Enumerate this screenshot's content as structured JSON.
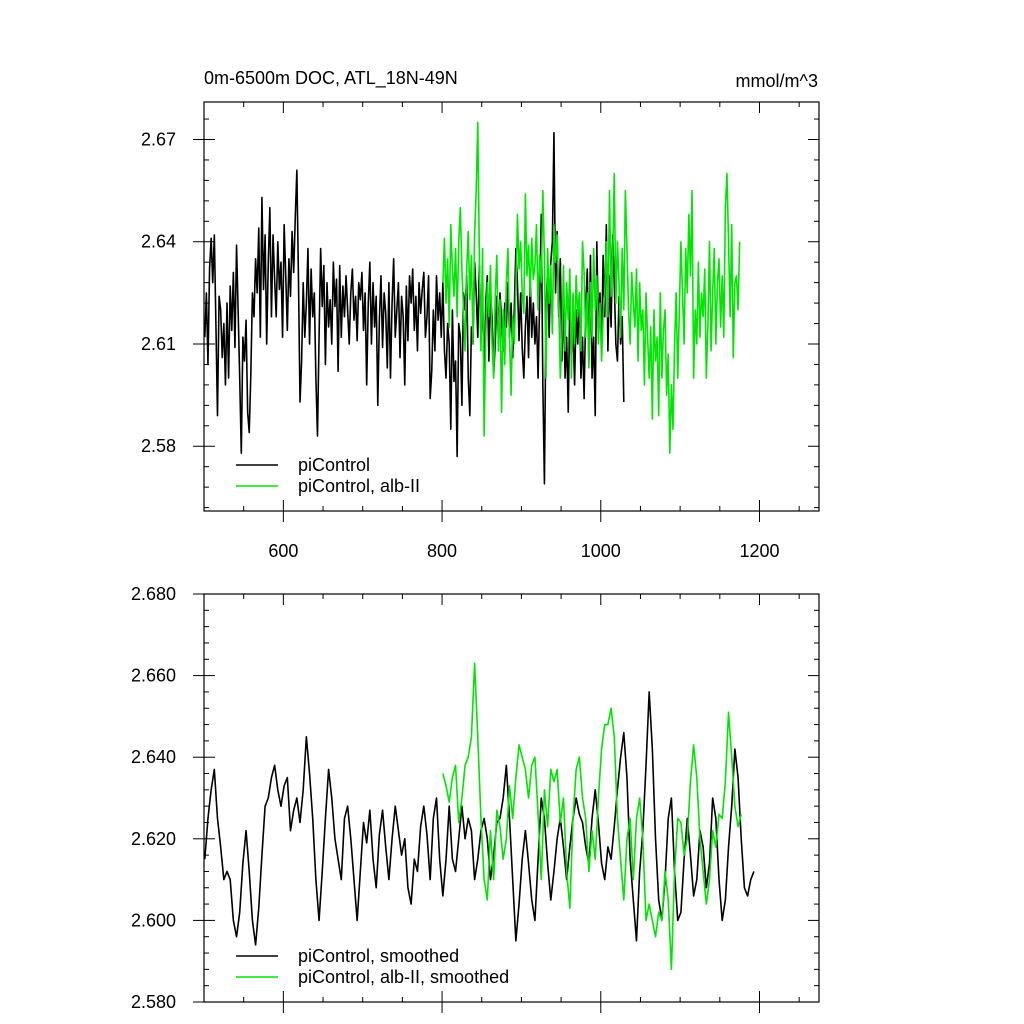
{
  "chart_data": [
    {
      "type": "line",
      "title": "0m-6500m DOC, ATL_18N-49N",
      "units": "mmol/m^3",
      "xlim": [
        500,
        1275
      ],
      "ylim": [
        2.561,
        2.681
      ],
      "xticks": [
        600,
        800,
        1000,
        1200
      ],
      "yticks": [
        2.58,
        2.61,
        2.64,
        2.67
      ],
      "ytick_labels": [
        "2.58",
        "2.61",
        "2.64",
        "2.67"
      ],
      "legend_position": "bottom-left",
      "series": [
        {
          "name": "piControl",
          "color": "#000000",
          "x_start": 501,
          "x_step": 2,
          "values": [
            2.612,
            2.625,
            2.604,
            2.632,
            2.641,
            2.628,
            2.642,
            2.616,
            2.589,
            2.624,
            2.62,
            2.606,
            2.616,
            2.598,
            2.622,
            2.6,
            2.627,
            2.614,
            2.631,
            2.609,
            2.639,
            2.62,
            2.6,
            2.578,
            2.612,
            2.605,
            2.617,
            2.59,
            2.584,
            2.601,
            2.625,
            2.618,
            2.635,
            2.625,
            2.644,
            2.612,
            2.653,
            2.626,
            2.642,
            2.61,
            2.634,
            2.65,
            2.618,
            2.642,
            2.629,
            2.618,
            2.64,
            2.626,
            2.634,
            2.612,
            2.645,
            2.63,
            2.614,
            2.635,
            2.624,
            2.643,
            2.631,
            2.647,
            2.661,
            2.63,
            2.593,
            2.605,
            2.628,
            2.612,
            2.622,
            2.638,
            2.61,
            2.632,
            2.618,
            2.625,
            2.6,
            2.583,
            2.612,
            2.638,
            2.621,
            2.633,
            2.604,
            2.628,
            2.615,
            2.623,
            2.61,
            2.634,
            2.621,
            2.629,
            2.602,
            2.633,
            2.612,
            2.627,
            2.618,
            2.63,
            2.62,
            2.61,
            2.625,
            2.632,
            2.617,
            2.624,
            2.611,
            2.628,
            2.623,
            2.631,
            2.614,
            2.625,
            2.598,
            2.622,
            2.634,
            2.61,
            2.628,
            2.615,
            2.624,
            2.592,
            2.617,
            2.63,
            2.609,
            2.625,
            2.619,
            2.603,
            2.628,
            2.6,
            2.622,
            2.635,
            2.612,
            2.62,
            2.628,
            2.606,
            2.624,
            2.618,
            2.598,
            2.627,
            2.611,
            2.63,
            2.622,
            2.632,
            2.614,
            2.624,
            2.608,
            2.628,
            2.619,
            2.626,
            2.631,
            2.612,
            2.618,
            2.63,
            2.594,
            2.602,
            2.62,
            2.608,
            2.63,
            2.617,
            2.625,
            2.612,
            2.628,
            2.608,
            2.6,
            2.616,
            2.61,
            2.585,
            2.62,
            2.599,
            2.605,
            2.577,
            2.616,
            2.612,
            2.592,
            2.625,
            2.62,
            2.63,
            2.6,
            2.589,
            2.615,
            2.61,
            2.634,
            2.625,
            2.612,
            2.633,
            2.611,
            2.623,
            2.6,
            2.622,
            2.63,
            2.605,
            2.625,
            2.618,
            2.601,
            2.61,
            2.624,
            2.612,
            2.625,
            2.617,
            2.608,
            2.622,
            2.615,
            2.628,
            2.612,
            2.622,
            2.606,
            2.62,
            2.638,
            2.628,
            2.611,
            2.625,
            2.609,
            2.6,
            2.615,
            2.624,
            2.606,
            2.63,
            2.612,
            2.622,
            2.61,
            2.618,
            2.6,
            2.623,
            2.648,
            2.598,
            2.569,
            2.62,
            2.632,
            2.612,
            2.634,
            2.64,
            2.672,
            2.625,
            2.643,
            2.618,
            2.635,
            2.605,
            2.624,
            2.6,
            2.612,
            2.59,
            2.624,
            2.605,
            2.615,
            2.598,
            2.62,
            2.61,
            2.625,
            2.6,
            2.612,
            2.594,
            2.62,
            2.632,
            2.605,
            2.636,
            2.6,
            2.612,
            2.589,
            2.64,
            2.615,
            2.625,
            2.608,
            2.636,
            2.618,
            2.645,
            2.608,
            2.63,
            2.615,
            2.642,
            2.628,
            2.61,
            2.605,
            2.624,
            2.61,
            2.618,
            2.593
          ]
        },
        {
          "name": "piControl, alb-II",
          "color": "#00e600",
          "x_start": 801,
          "x_step": 2,
          "values": [
            2.628,
            2.641,
            2.622,
            2.635,
            2.615,
            2.645,
            2.632,
            2.624,
            2.638,
            2.618,
            2.64,
            2.65,
            2.632,
            2.62,
            2.608,
            2.632,
            2.643,
            2.623,
            2.636,
            2.61,
            2.642,
            2.655,
            2.675,
            2.635,
            2.608,
            2.638,
            2.583,
            2.612,
            2.628,
            2.618,
            2.633,
            2.61,
            2.6,
            2.624,
            2.636,
            2.608,
            2.623,
            2.59,
            2.62,
            2.604,
            2.628,
            2.638,
            2.612,
            2.595,
            2.618,
            2.61,
            2.626,
            2.648,
            2.632,
            2.64,
            2.625,
            2.619,
            2.654,
            2.63,
            2.639,
            2.624,
            2.641,
            2.629,
            2.633,
            2.645,
            2.62,
            2.636,
            2.628,
            2.655,
            2.635,
            2.6,
            2.638,
            2.622,
            2.633,
            2.613,
            2.645,
            2.634,
            2.642,
            2.622,
            2.6,
            2.612,
            2.633,
            2.608,
            2.628,
            2.617,
            2.632,
            2.6,
            2.625,
            2.61,
            2.63,
            2.618,
            2.625,
            2.608,
            2.64,
            2.631,
            2.612,
            2.625,
            2.603,
            2.628,
            2.612,
            2.638,
            2.62,
            2.63,
            2.61,
            2.622,
            2.605,
            2.618,
            2.625,
            2.64,
            2.618,
            2.655,
            2.624,
            2.635,
            2.66,
            2.622,
            2.64,
            2.628,
            2.612,
            2.638,
            2.62,
            2.655,
            2.638,
            2.62,
            2.61,
            2.631,
            2.622,
            2.615,
            2.632,
            2.605,
            2.628,
            2.614,
            2.62,
            2.598,
            2.625,
            2.612,
            2.6,
            2.615,
            2.588,
            2.62,
            2.605,
            2.612,
            2.589,
            2.625,
            2.6,
            2.614,
            2.62,
            2.595,
            2.607,
            2.578,
            2.598,
            2.585,
            2.61,
            2.625,
            2.6,
            2.62,
            2.64,
            2.625,
            2.61,
            2.638,
            2.625,
            2.648,
            2.63,
            2.655,
            2.6,
            2.62,
            2.61,
            2.634,
            2.612,
            2.625,
            2.618,
            2.632,
            2.6,
            2.616,
            2.64,
            2.608,
            2.625,
            2.638,
            2.61,
            2.628,
            2.635,
            2.615,
            2.63,
            2.612,
            2.65,
            2.66,
            2.64,
            2.618,
            2.645,
            2.606,
            2.628,
            2.63,
            2.62,
            2.64
          ]
        }
      ]
    },
    {
      "type": "line",
      "xlim": [
        500,
        1275
      ],
      "ylim": [
        2.58,
        2.68
      ],
      "xticks": [
        600,
        800,
        1000,
        1200
      ],
      "yticks": [
        2.58,
        2.6,
        2.62,
        2.64,
        2.66,
        2.68
      ],
      "ytick_labels": [
        "2.580",
        "2.600",
        "2.620",
        "2.640",
        "2.660",
        "2.680"
      ],
      "legend_position": "bottom-left",
      "series": [
        {
          "name": "piControl, smoothed",
          "color": "#000000",
          "x_start": 501,
          "x_step": 4,
          "values": [
            2.615,
            2.625,
            2.632,
            2.637,
            2.625,
            2.618,
            2.61,
            2.612,
            2.61,
            2.6,
            2.596,
            2.602,
            2.614,
            2.622,
            2.612,
            2.6,
            2.594,
            2.603,
            2.616,
            2.628,
            2.63,
            2.635,
            2.638,
            2.632,
            2.628,
            2.633,
            2.635,
            2.622,
            2.627,
            2.63,
            2.624,
            2.632,
            2.645,
            2.636,
            2.625,
            2.61,
            2.6,
            2.612,
            2.625,
            2.637,
            2.63,
            2.62,
            2.615,
            2.61,
            2.625,
            2.628,
            2.62,
            2.61,
            2.6,
            2.612,
            2.624,
            2.619,
            2.627,
            2.615,
            2.608,
            2.621,
            2.627,
            2.618,
            2.61,
            2.62,
            2.628,
            2.622,
            2.616,
            2.62,
            2.608,
            2.604,
            2.615,
            2.612,
            2.623,
            2.628,
            2.621,
            2.61,
            2.625,
            2.63,
            2.615,
            2.606,
            2.615,
            2.628,
            2.615,
            2.612,
            2.62,
            2.628,
            2.62,
            2.625,
            2.622,
            2.61,
            2.615,
            2.622,
            2.625,
            2.62,
            2.61,
            2.616,
            2.624,
            2.625,
            2.63,
            2.638,
            2.625,
            2.61,
            2.595,
            2.604,
            2.615,
            2.622,
            2.614,
            2.605,
            2.6,
            2.615,
            2.63,
            2.625,
            2.614,
            2.605,
            2.612,
            2.62,
            2.625,
            2.618,
            2.61,
            2.618,
            2.625,
            2.63,
            2.626,
            2.624,
            2.618,
            2.614,
            2.625,
            2.632,
            2.624,
            2.614,
            2.61,
            2.618,
            2.615,
            2.623,
            2.632,
            2.64,
            2.646,
            2.635,
            2.615,
            2.605,
            2.595,
            2.612,
            2.622,
            2.638,
            2.656,
            2.642,
            2.62,
            2.605,
            2.6,
            2.61,
            2.625,
            2.63,
            2.612,
            2.6,
            2.602,
            2.615,
            2.625,
            2.616,
            2.606,
            2.61,
            2.622,
            2.618,
            2.608,
            2.614,
            2.63,
            2.625,
            2.61,
            2.6,
            2.605,
            2.618,
            2.628,
            2.642,
            2.635,
            2.62,
            2.608,
            2.606,
            2.61,
            2.612
          ]
        },
        {
          "name": "piControl, alb-II, smoothed",
          "color": "#00e600",
          "x_start": 801,
          "x_step": 4,
          "values": [
            2.636,
            2.633,
            2.629,
            2.635,
            2.638,
            2.624,
            2.63,
            2.638,
            2.64,
            2.645,
            2.663,
            2.645,
            2.625,
            2.61,
            2.605,
            2.622,
            2.61,
            2.627,
            2.623,
            2.615,
            2.62,
            2.633,
            2.625,
            2.635,
            2.643,
            2.64,
            2.637,
            2.63,
            2.638,
            2.64,
            2.626,
            2.61,
            2.632,
            2.623,
            2.637,
            2.634,
            2.637,
            2.624,
            2.63,
            2.612,
            2.603,
            2.625,
            2.637,
            2.64,
            2.63,
            2.625,
            2.612,
            2.622,
            2.615,
            2.63,
            2.642,
            2.648,
            2.648,
            2.652,
            2.645,
            2.625,
            2.615,
            2.605,
            2.62,
            2.625,
            2.61,
            2.625,
            2.63,
            2.62,
            2.6,
            2.604,
            2.6,
            2.596,
            2.602,
            2.6,
            2.612,
            2.605,
            2.588,
            2.612,
            2.625,
            2.624,
            2.616,
            2.62,
            2.634,
            2.643,
            2.635,
            2.62,
            2.612,
            2.604,
            2.61,
            2.622,
            2.618,
            2.626,
            2.625,
            2.634,
            2.651,
            2.64,
            2.628,
            2.623,
            2.626
          ]
        }
      ]
    }
  ]
}
